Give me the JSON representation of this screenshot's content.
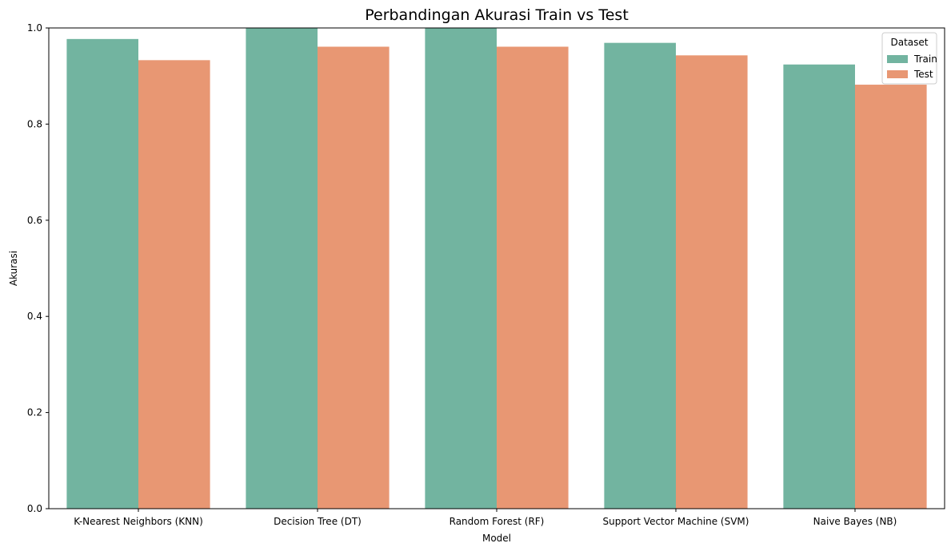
{
  "chart_data": {
    "type": "bar",
    "title": "Perbandingan Akurasi Train vs Test",
    "xlabel": "Model",
    "ylabel": "Akurasi",
    "categories": [
      "K-Nearest Neighbors (KNN)",
      "Decision Tree (DT)",
      "Random Forest (RF)",
      "Support Vector Machine (SVM)",
      "Naive Bayes (NB)"
    ],
    "series": [
      {
        "name": "Train",
        "color": "#72b4a0",
        "values": [
          0.977,
          1.0,
          1.0,
          0.969,
          0.924
        ]
      },
      {
        "name": "Test",
        "color": "#e89773",
        "values": [
          0.933,
          0.961,
          0.961,
          0.943,
          0.882
        ]
      }
    ],
    "ylim": [
      0,
      1.0
    ],
    "yticks": [
      "0.0",
      "0.2",
      "0.4",
      "0.6",
      "0.8",
      "1.0"
    ],
    "grid": false,
    "legend": {
      "title": "Dataset",
      "placement": "top-right"
    }
  }
}
